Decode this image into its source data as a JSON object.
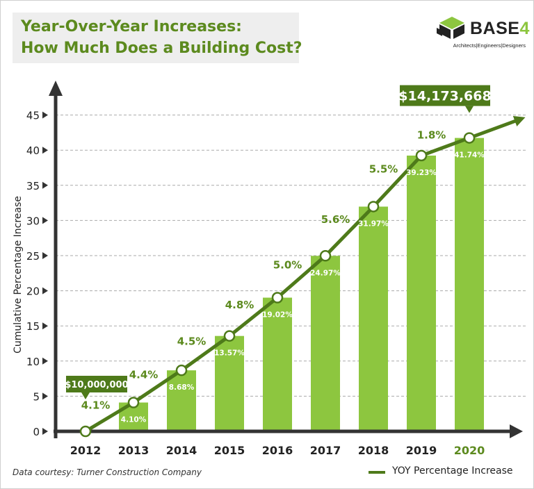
{
  "title": {
    "line1": "Year-Over-Year Increases:",
    "line2": "How Much Does a Building Cost?"
  },
  "logo": {
    "word": "BASE",
    "number": "4",
    "tagline": "Architects|Engineers|Designers"
  },
  "footnote": "Data courtesy: Turner Construction Company",
  "colors": {
    "bar": "#8dc63f",
    "line": "#4e7a1a",
    "label_box": "#4e7a1a",
    "yoy_text": "#5c8a1e",
    "axis": "#333333",
    "grid": "#aaaaaa"
  },
  "chart_data": {
    "type": "bar",
    "ylabel": "Cumulative Percentage Increase",
    "ylim": [
      0,
      45
    ],
    "yticks": [
      0,
      5,
      10,
      15,
      20,
      25,
      30,
      35,
      40,
      45
    ],
    "grid": true,
    "legend_position": "bottom-right",
    "categories": [
      "2012",
      "2013",
      "2014",
      "2015",
      "2016",
      "2017",
      "2018",
      "2019",
      "2020"
    ],
    "highlight_category": "2020",
    "series": [
      {
        "kind": "bar",
        "values": [
          0,
          4.1,
          8.68,
          13.57,
          19.02,
          24.97,
          31.97,
          39.23,
          41.74
        ],
        "labels": [
          "",
          "4.10%",
          "8.68%",
          "13.57%",
          "19.02%",
          "24.97%",
          "31.97%",
          "39.23%",
          "41.74%"
        ]
      },
      {
        "kind": "line",
        "name": "YOY Percentage Increase",
        "values": [
          0,
          4.1,
          8.68,
          13.57,
          19.02,
          24.97,
          31.97,
          39.23,
          41.74
        ],
        "labels": [
          "4.1%",
          "4.4%",
          "4.5%",
          "4.8%",
          "5.0%",
          "5.6%",
          "5.5%",
          "1.8%",
          ""
        ]
      }
    ],
    "annotations": [
      {
        "category": "2012",
        "text": "$10,000,000"
      },
      {
        "category": "2020",
        "text": "$14,173,668"
      }
    ]
  }
}
